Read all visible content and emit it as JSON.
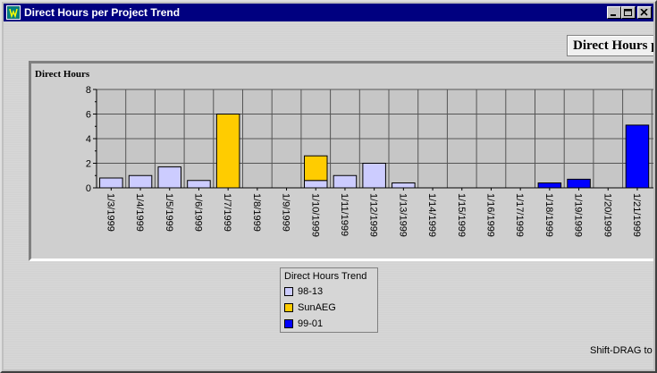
{
  "window": {
    "title": "Direct Hours per Project Trend",
    "minimize_icon": "minimize-icon",
    "maximize_icon": "maximize-icon",
    "close_icon": "close-icon"
  },
  "header": {
    "title_partial": "Direct Hours p"
  },
  "chart_data": {
    "type": "bar",
    "stacked": true,
    "ylabel": "Direct Hours",
    "ylim": [
      0,
      8
    ],
    "yticks": [
      "0",
      "2",
      "4",
      "6",
      "8"
    ],
    "grid": true,
    "categories": [
      "1/3/1999",
      "1/4/1999",
      "1/5/1999",
      "1/6/1999",
      "1/7/1999",
      "1/8/1999",
      "1/9/1999",
      "1/10/1999",
      "1/11/1999",
      "1/12/1999",
      "1/13/1999",
      "1/14/1999",
      "1/15/1999",
      "1/16/1999",
      "1/17/1999",
      "1/18/1999",
      "1/19/1999",
      "1/20/1999",
      "1/21/1999"
    ],
    "series": [
      {
        "name": "98-13",
        "color": "#ccccff",
        "values": [
          0.8,
          1.0,
          1.7,
          0.6,
          0,
          0,
          0,
          0.6,
          1.0,
          2.0,
          0.4,
          0,
          0,
          0,
          0,
          0,
          0,
          0,
          0
        ]
      },
      {
        "name": "SunAEG",
        "color": "#ffcc00",
        "values": [
          0,
          0,
          0,
          0,
          6.0,
          0,
          0,
          2.0,
          0,
          0,
          0,
          0,
          0,
          0,
          0,
          0,
          0,
          0,
          0
        ]
      },
      {
        "name": "99-01",
        "color": "#0000ff",
        "values": [
          0,
          0,
          0,
          0,
          0,
          0,
          0,
          0,
          0,
          0,
          0,
          0,
          0,
          0,
          0,
          0.4,
          0.7,
          0,
          5.1
        ]
      }
    ]
  },
  "legend": {
    "title": "Direct Hours Trend",
    "items": [
      {
        "label": "98-13",
        "color": "#ccccff"
      },
      {
        "label": "SunAEG",
        "color": "#ffcc00"
      },
      {
        "label": "99-01",
        "color": "#0000ff"
      }
    ]
  },
  "status": {
    "text": "Shift-DRAG to"
  }
}
